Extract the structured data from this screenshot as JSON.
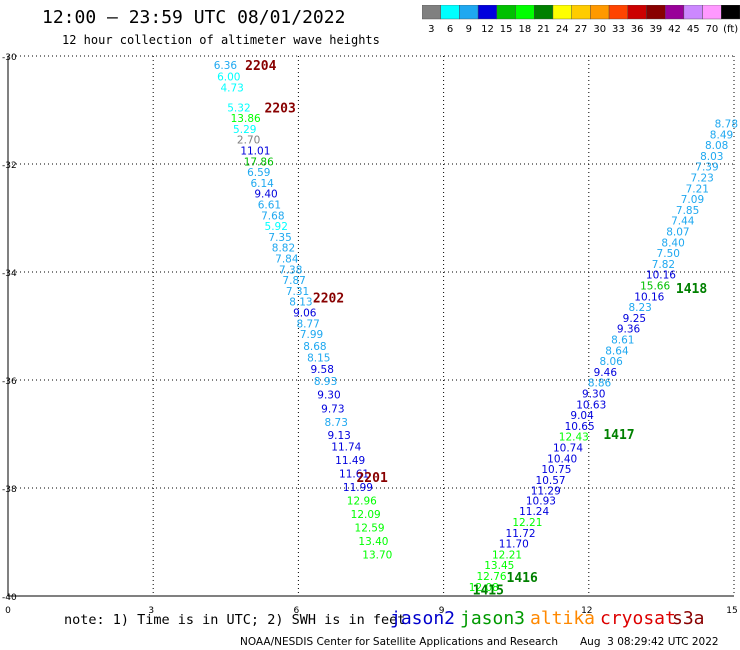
{
  "header": {
    "title": "12:00 — 23:59 UTC 08/01/2022",
    "subtitle": "12 hour collection of altimeter wave heights"
  },
  "legend": {
    "labels": [
      "3",
      "6",
      "9",
      "12",
      "15",
      "18",
      "21",
      "24",
      "27",
      "30",
      "33",
      "36",
      "39",
      "42",
      "45",
      "70",
      "(ft)"
    ],
    "colors": [
      "#808080",
      "#00ffff",
      "#1fa8f0",
      "#0000dd",
      "#00c000",
      "#00ff00",
      "#008000",
      "#ffff00",
      "#ffcc00",
      "#ff9900",
      "#ff4400",
      "#cc0000",
      "#880000",
      "#990099",
      "#cc88ff",
      "#ff99ff",
      "#000000"
    ]
  },
  "footer": {
    "note": "note: 1) Time is in UTC; 2) SWH is in feet",
    "credit": "NOAA/NESDIS Center for Satellite Applications and Research",
    "timestamp": "Aug  3 08:29:42 UTC 2022",
    "satellites": [
      {
        "name": "jason2",
        "color": "#0000cc"
      },
      {
        "name": "jason3",
        "color": "#009900"
      },
      {
        "name": "altika",
        "color": "#ff8800"
      },
      {
        "name": "cryosat",
        "color": "#dd0000"
      },
      {
        "name": "s3a",
        "color": "#880000"
      }
    ]
  },
  "chart_data": {
    "type": "scatter",
    "xlim": [
      0,
      15
    ],
    "ylim": [
      -40,
      -30
    ],
    "xticks": [
      "0",
      "3",
      "6",
      "9",
      "12",
      "15"
    ],
    "yticks": [
      "-30",
      "-32",
      "-34",
      "-36",
      "-38",
      "-40"
    ],
    "grid": true,
    "track_labels": [
      {
        "label": "2204",
        "x": 4.9,
        "y": -30.17,
        "color": "#880000"
      },
      {
        "label": "2203",
        "x": 5.3,
        "y": -30.95,
        "color": "#880000"
      },
      {
        "label": "2202",
        "x": 6.3,
        "y": -34.47,
        "color": "#880000"
      },
      {
        "label": "2201",
        "x": 7.2,
        "y": -37.8,
        "color": "#880000"
      },
      {
        "label": "1418",
        "x": 13.8,
        "y": -34.3,
        "color": "#008000"
      },
      {
        "label": "1417",
        "x": 12.3,
        "y": -37.0,
        "color": "#008000"
      },
      {
        "label": "1416",
        "x": 10.3,
        "y": -39.65,
        "color": "#008000"
      },
      {
        "label": "1415",
        "x": 9.6,
        "y": -39.88,
        "color": "#008000"
      }
    ],
    "points": [
      {
        "v": "6.36",
        "x": 4.25,
        "y": -30.17,
        "c": "#1fa8f0"
      },
      {
        "v": "6.00",
        "x": 4.32,
        "y": -30.38,
        "c": "#00ffff"
      },
      {
        "v": "4.73",
        "x": 4.39,
        "y": -30.58,
        "c": "#00ffff"
      },
      {
        "v": "5.32",
        "x": 4.53,
        "y": -30.95,
        "c": "#00ffff"
      },
      {
        "v": "13.86",
        "x": 4.6,
        "y": -31.15,
        "c": "#00ff00"
      },
      {
        "v": "5.29",
        "x": 4.65,
        "y": -31.35,
        "c": "#00ffff"
      },
      {
        "v": "2.70",
        "x": 4.73,
        "y": -31.55,
        "c": "#808080"
      },
      {
        "v": "11.01",
        "x": 4.8,
        "y": -31.75,
        "c": "#0000dd"
      },
      {
        "v": "17.86",
        "x": 4.87,
        "y": -31.95,
        "c": "#00c000"
      },
      {
        "v": "6.59",
        "x": 4.94,
        "y": -32.15,
        "c": "#1fa8f0"
      },
      {
        "v": "6.14",
        "x": 5.01,
        "y": -32.35,
        "c": "#1fa8f0"
      },
      {
        "v": "9.40",
        "x": 5.09,
        "y": -32.55,
        "c": "#0000dd"
      },
      {
        "v": "6.61",
        "x": 5.16,
        "y": -32.75,
        "c": "#1fa8f0"
      },
      {
        "v": "7.68",
        "x": 5.23,
        "y": -32.95,
        "c": "#1fa8f0"
      },
      {
        "v": "5.92",
        "x": 5.3,
        "y": -33.15,
        "c": "#00ffff"
      },
      {
        "v": "7.35",
        "x": 5.38,
        "y": -33.35,
        "c": "#1fa8f0"
      },
      {
        "v": "8.82",
        "x": 5.45,
        "y": -33.55,
        "c": "#1fa8f0"
      },
      {
        "v": "7.84",
        "x": 5.52,
        "y": -33.75,
        "c": "#1fa8f0"
      },
      {
        "v": "7.38",
        "x": 5.6,
        "y": -33.95,
        "c": "#1fa8f0"
      },
      {
        "v": "7.87",
        "x": 5.67,
        "y": -34.15,
        "c": "#1fa8f0"
      },
      {
        "v": "7.31",
        "x": 5.74,
        "y": -34.35,
        "c": "#1fa8f0"
      },
      {
        "v": "8.13",
        "x": 5.81,
        "y": -34.55,
        "c": "#1fa8f0"
      },
      {
        "v": "9.06",
        "x": 5.89,
        "y": -34.75,
        "c": "#0000dd"
      },
      {
        "v": "8.77",
        "x": 5.96,
        "y": -34.95,
        "c": "#1fa8f0"
      },
      {
        "v": "7.99",
        "x": 6.03,
        "y": -35.15,
        "c": "#1fa8f0"
      },
      {
        "v": "8.68",
        "x": 6.1,
        "y": -35.37,
        "c": "#1fa8f0"
      },
      {
        "v": "8.15",
        "x": 6.18,
        "y": -35.58,
        "c": "#1fa8f0"
      },
      {
        "v": "9.58",
        "x": 6.25,
        "y": -35.8,
        "c": "#0000dd"
      },
      {
        "v": "8.93",
        "x": 6.32,
        "y": -36.02,
        "c": "#1fa8f0"
      },
      {
        "v": "9.30",
        "x": 6.39,
        "y": -36.27,
        "c": "#0000dd"
      },
      {
        "v": "9.73",
        "x": 6.47,
        "y": -36.53,
        "c": "#0000dd"
      },
      {
        "v": "8.73",
        "x": 6.54,
        "y": -36.78,
        "c": "#1fa8f0"
      },
      {
        "v": "9.13",
        "x": 6.6,
        "y": -37.02,
        "c": "#0000dd"
      },
      {
        "v": "11.74",
        "x": 6.68,
        "y": -37.23,
        "c": "#0000dd"
      },
      {
        "v": "11.49",
        "x": 6.76,
        "y": -37.48,
        "c": "#0000dd"
      },
      {
        "v": "11.61",
        "x": 6.84,
        "y": -37.73,
        "c": "#0000dd"
      },
      {
        "v": "11.99",
        "x": 6.92,
        "y": -37.98,
        "c": "#0000dd"
      },
      {
        "v": "12.96",
        "x": 7.0,
        "y": -38.23,
        "c": "#00ff00"
      },
      {
        "v": "12.09",
        "x": 7.08,
        "y": -38.48,
        "c": "#00ff00"
      },
      {
        "v": "12.59",
        "x": 7.16,
        "y": -38.73,
        "c": "#00ff00"
      },
      {
        "v": "13.40",
        "x": 7.24,
        "y": -38.98,
        "c": "#00ff00"
      },
      {
        "v": "13.70",
        "x": 7.32,
        "y": -39.23,
        "c": "#00ff00"
      },
      {
        "v": "12.08",
        "x": 9.52,
        "y": -39.83,
        "c": "#00ff00"
      },
      {
        "v": "12.76",
        "x": 9.68,
        "y": -39.63,
        "c": "#00ff00"
      },
      {
        "v": "13.45",
        "x": 9.84,
        "y": -39.43,
        "c": "#00ff00"
      },
      {
        "v": "12.21",
        "x": 10.0,
        "y": -39.23,
        "c": "#00ff00"
      },
      {
        "v": "11.70",
        "x": 10.14,
        "y": -39.03,
        "c": "#0000dd"
      },
      {
        "v": "11.72",
        "x": 10.28,
        "y": -38.83,
        "c": "#0000dd"
      },
      {
        "v": "12.21",
        "x": 10.42,
        "y": -38.63,
        "c": "#00ff00"
      },
      {
        "v": "11.24",
        "x": 10.56,
        "y": -38.43,
        "c": "#0000dd"
      },
      {
        "v": "10.93",
        "x": 10.7,
        "y": -38.23,
        "c": "#0000dd"
      },
      {
        "v": "11.29",
        "x": 10.8,
        "y": -38.05,
        "c": "#0000dd"
      },
      {
        "v": "10.57",
        "x": 10.9,
        "y": -37.85,
        "c": "#0000dd"
      },
      {
        "v": "10.75",
        "x": 11.02,
        "y": -37.65,
        "c": "#0000dd"
      },
      {
        "v": "10.40",
        "x": 11.14,
        "y": -37.45,
        "c": "#0000dd"
      },
      {
        "v": "10.74",
        "x": 11.26,
        "y": -37.25,
        "c": "#0000dd"
      },
      {
        "v": "12.43",
        "x": 11.38,
        "y": -37.05,
        "c": "#00ff00"
      },
      {
        "v": "10.65",
        "x": 11.5,
        "y": -36.85,
        "c": "#0000dd"
      },
      {
        "v": "9.04",
        "x": 11.62,
        "y": -36.65,
        "c": "#0000dd"
      },
      {
        "v": "10.63",
        "x": 11.74,
        "y": -36.45,
        "c": "#0000dd"
      },
      {
        "v": "9.30",
        "x": 11.86,
        "y": -36.25,
        "c": "#0000dd"
      },
      {
        "v": "8.86",
        "x": 11.98,
        "y": -36.05,
        "c": "#1fa8f0"
      },
      {
        "v": "9.46",
        "x": 12.1,
        "y": -35.85,
        "c": "#0000dd"
      },
      {
        "v": "8.06",
        "x": 12.22,
        "y": -35.65,
        "c": "#1fa8f0"
      },
      {
        "v": "8.64",
        "x": 12.34,
        "y": -35.45,
        "c": "#1fa8f0"
      },
      {
        "v": "8.61",
        "x": 12.46,
        "y": -35.25,
        "c": "#1fa8f0"
      },
      {
        "v": "9.36",
        "x": 12.58,
        "y": -35.05,
        "c": "#0000dd"
      },
      {
        "v": "9.25",
        "x": 12.7,
        "y": -34.85,
        "c": "#0000dd"
      },
      {
        "v": "8.23",
        "x": 12.82,
        "y": -34.65,
        "c": "#1fa8f0"
      },
      {
        "v": "10.16",
        "x": 12.94,
        "y": -34.45,
        "c": "#0000dd"
      },
      {
        "v": "15.66",
        "x": 13.06,
        "y": -34.25,
        "c": "#00c000"
      },
      {
        "v": "10.16",
        "x": 13.18,
        "y": -34.05,
        "c": "#0000dd"
      },
      {
        "v": "7.82",
        "x": 13.3,
        "y": -33.85,
        "c": "#1fa8f0"
      },
      {
        "v": "7.50",
        "x": 13.4,
        "y": -33.65,
        "c": "#1fa8f0"
      },
      {
        "v": "8.40",
        "x": 13.5,
        "y": -33.45,
        "c": "#1fa8f0"
      },
      {
        "v": "8.07",
        "x": 13.6,
        "y": -33.25,
        "c": "#1fa8f0"
      },
      {
        "v": "7.44",
        "x": 13.7,
        "y": -33.05,
        "c": "#1fa8f0"
      },
      {
        "v": "7.85",
        "x": 13.8,
        "y": -32.85,
        "c": "#1fa8f0"
      },
      {
        "v": "7.09",
        "x": 13.9,
        "y": -32.65,
        "c": "#1fa8f0"
      },
      {
        "v": "7.21",
        "x": 14.0,
        "y": -32.45,
        "c": "#1fa8f0"
      },
      {
        "v": "7.23",
        "x": 14.1,
        "y": -32.25,
        "c": "#1fa8f0"
      },
      {
        "v": "7.39",
        "x": 14.2,
        "y": -32.05,
        "c": "#1fa8f0"
      },
      {
        "v": "8.03",
        "x": 14.3,
        "y": -31.85,
        "c": "#1fa8f0"
      },
      {
        "v": "8.08",
        "x": 14.4,
        "y": -31.65,
        "c": "#1fa8f0"
      },
      {
        "v": "8.49",
        "x": 14.5,
        "y": -31.45,
        "c": "#1fa8f0"
      },
      {
        "v": "8.78",
        "x": 14.6,
        "y": -31.25,
        "c": "#1fa8f0"
      }
    ]
  }
}
